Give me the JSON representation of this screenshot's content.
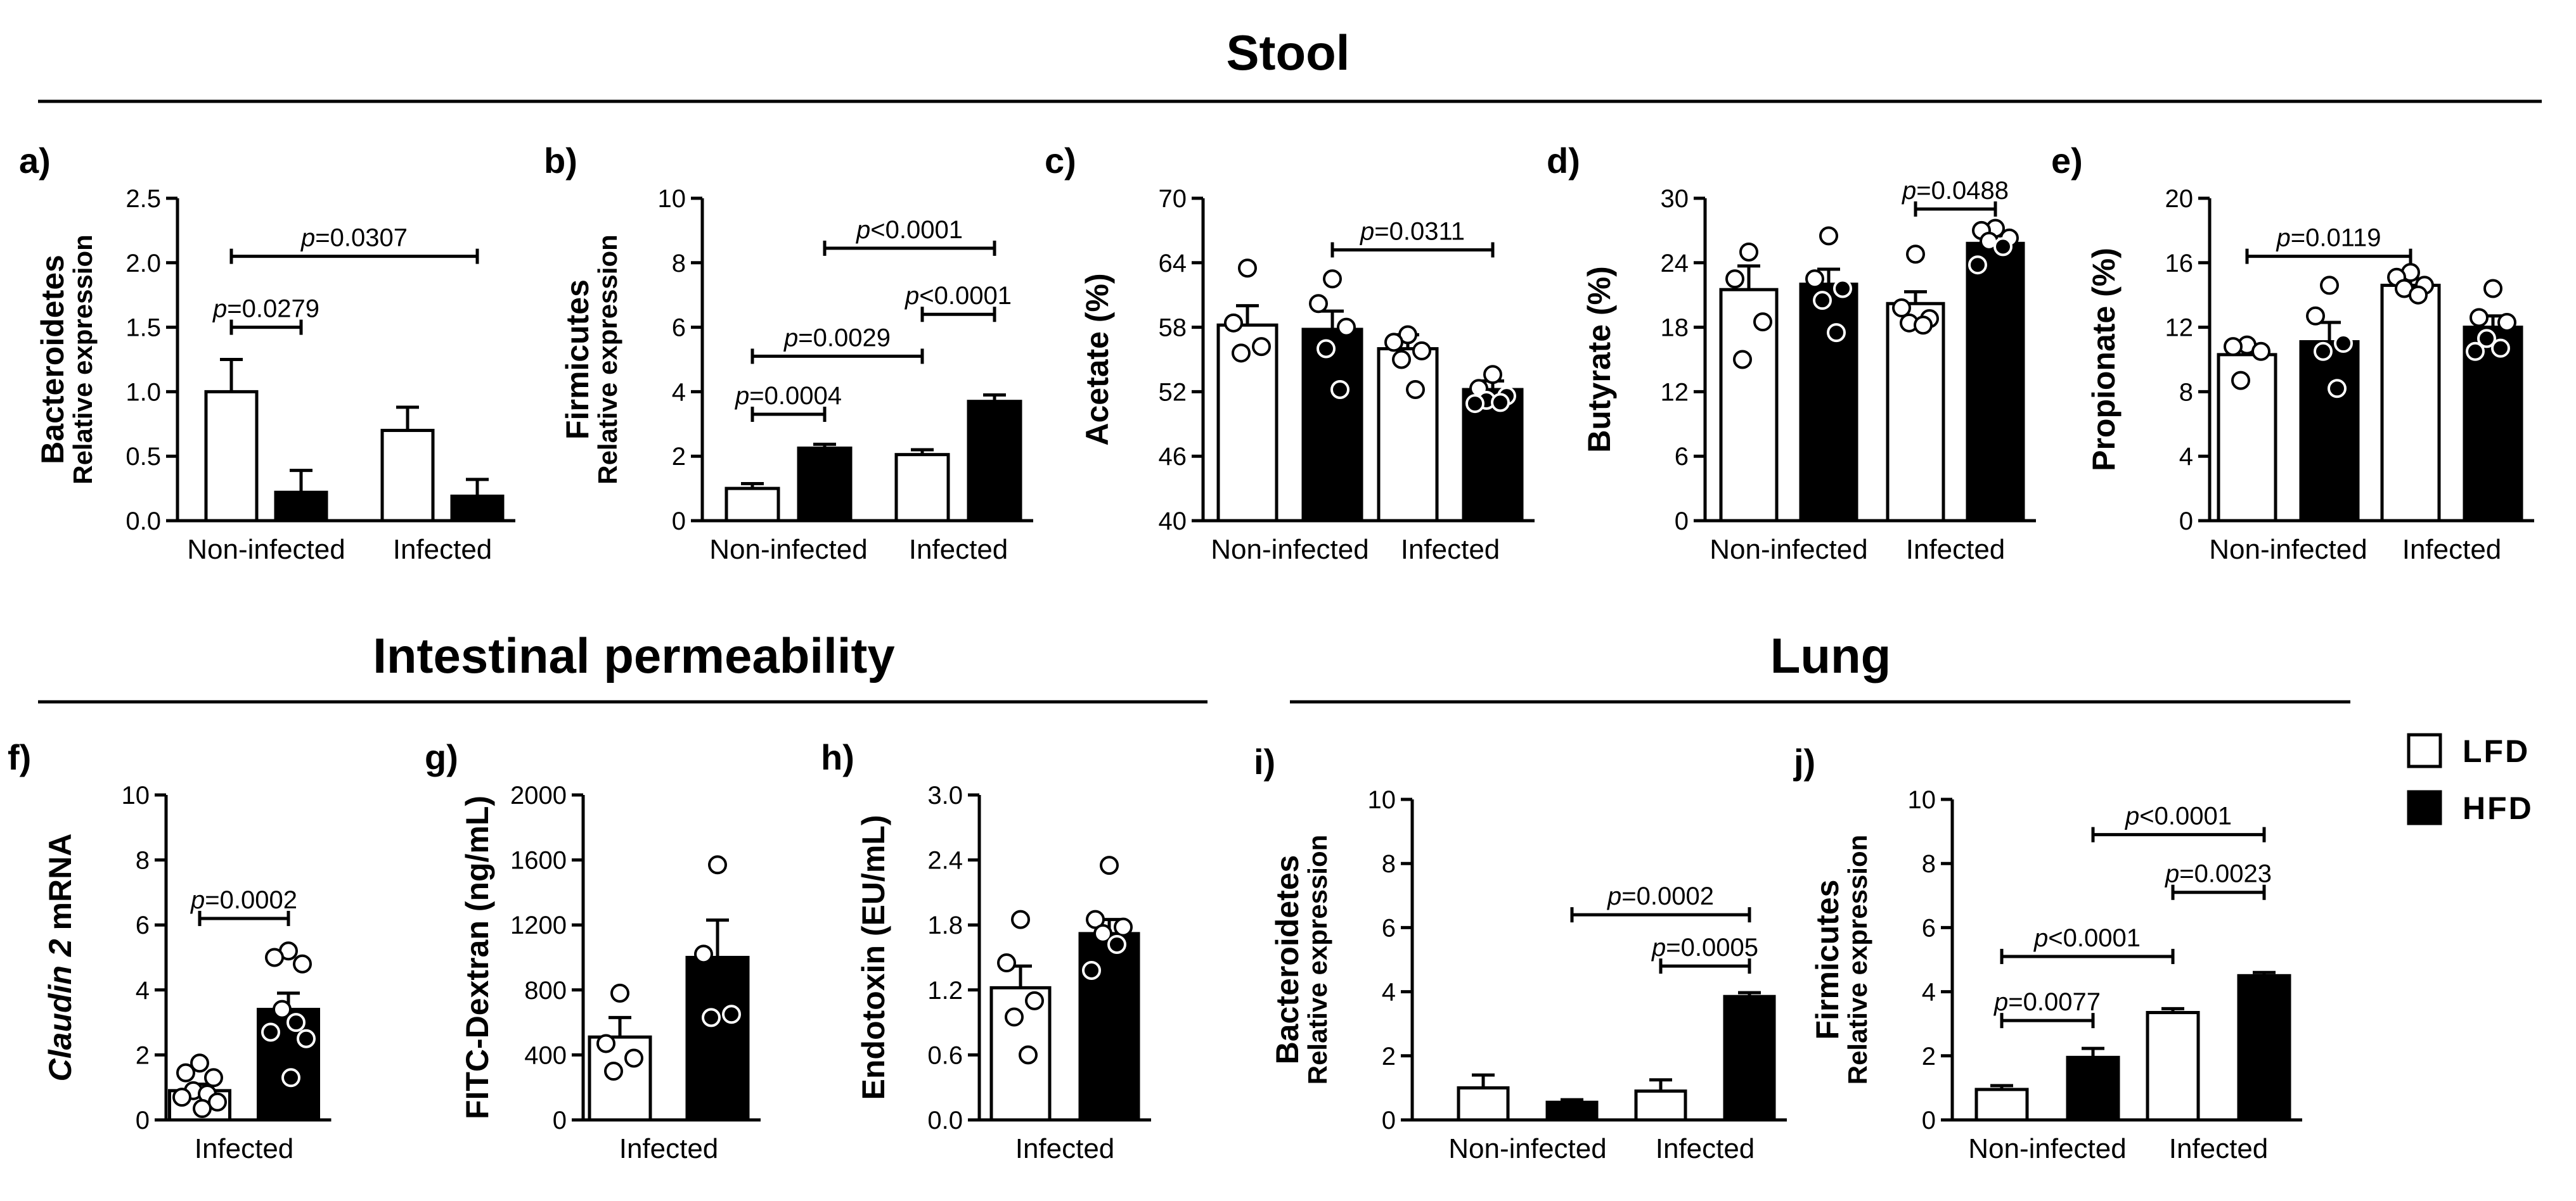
{
  "sections": {
    "stool": "Stool",
    "intestinal": "Intestinal permeability",
    "lung": "Lung"
  },
  "legend": [
    {
      "label": "LFD",
      "color": "#ffffff"
    },
    {
      "label": "HFD",
      "color": "#000000"
    }
  ],
  "chart_data": [
    {
      "id": "a",
      "label": "a)",
      "type": "bar",
      "ylabel": "Bacteroidetes",
      "ylabel2": "Relative expression",
      "ylim": [
        0,
        2.5
      ],
      "yticks": [
        "0.0",
        "0.5",
        "1.0",
        "1.5",
        "2.0",
        "2.5"
      ],
      "categories": [
        "Non-infected",
        "Infected"
      ],
      "series": [
        {
          "name": "LFD",
          "values": [
            1.0,
            0.7
          ],
          "errors": [
            0.25,
            0.18
          ],
          "points": [
            [],
            []
          ]
        },
        {
          "name": "HFD",
          "values": [
            0.22,
            0.19
          ],
          "errors": [
            0.17,
            0.13
          ],
          "points": [
            [],
            []
          ]
        }
      ],
      "comparisons": [
        {
          "p_pre": "p",
          "p_text": "=0.0279",
          "from": [
            0,
            0
          ],
          "to": [
            0,
            1
          ],
          "y": 1.5
        },
        {
          "p_pre": "p",
          "p_text": "=0.0307",
          "from": [
            0,
            0
          ],
          "to": [
            1,
            1
          ],
          "y": 2.05
        }
      ]
    },
    {
      "id": "b",
      "label": "b)",
      "type": "bar",
      "ylabel": "Firmicutes",
      "ylabel2": "Relative expression",
      "ylim": [
        0,
        10
      ],
      "yticks": [
        "0",
        "2",
        "4",
        "6",
        "8",
        "10"
      ],
      "categories": [
        "Non-infected",
        "Infected"
      ],
      "series": [
        {
          "name": "LFD",
          "values": [
            1.0,
            2.05
          ],
          "errors": [
            0.15,
            0.15
          ],
          "points": [
            [],
            []
          ]
        },
        {
          "name": "HFD",
          "values": [
            2.25,
            3.7
          ],
          "errors": [
            0.12,
            0.2
          ],
          "points": [
            [],
            []
          ]
        }
      ],
      "comparisons": [
        {
          "p_pre": "p",
          "p_text": "=0.0004",
          "from": [
            0,
            0
          ],
          "to": [
            0,
            1
          ],
          "y": 3.3
        },
        {
          "p_pre": "p",
          "p_text": "=0.0029",
          "from": [
            0,
            0
          ],
          "to": [
            1,
            0
          ],
          "y": 5.1
        },
        {
          "p_pre": "p",
          "p_text": "<0.0001",
          "from": [
            1,
            0
          ],
          "to": [
            1,
            1
          ],
          "y": 6.4
        },
        {
          "p_pre": "p",
          "p_text": "<0.0001",
          "from": [
            0,
            1
          ],
          "to": [
            1,
            1
          ],
          "y": 8.45
        }
      ]
    },
    {
      "id": "c",
      "label": "c)",
      "type": "bar",
      "ylabel": "Acetate (%)",
      "ylabel2": "",
      "ylim": [
        40,
        70
      ],
      "yticks": [
        "40",
        "46",
        "52",
        "58",
        "64",
        "70"
      ],
      "categories": [
        "Non-infected",
        "Infected"
      ],
      "series": [
        {
          "name": "LFD",
          "values": [
            58.2,
            56.0
          ],
          "errors": [
            1.8,
            1.3
          ],
          "points": [
            [
              63.5,
              58.4,
              56.2,
              55.6
            ],
            [
              57.3,
              56.6,
              55.8,
              55.0,
              52.2
            ]
          ]
        },
        {
          "name": "HFD",
          "values": [
            57.8,
            52.2
          ],
          "errors": [
            1.7,
            0.8
          ],
          "points": [
            [
              62.5,
              60.2,
              58.0,
              56.0,
              52.2
            ],
            [
              53.6,
              52.3,
              51.6,
              51.2,
              51.0,
              50.9
            ]
          ]
        }
      ],
      "comparisons": [
        {
          "p_pre": "p",
          "p_text": "=0.0311",
          "from": [
            0,
            1
          ],
          "to": [
            1,
            1
          ],
          "y": 65.2
        }
      ]
    },
    {
      "id": "d",
      "label": "d)",
      "type": "bar",
      "ylabel": "Butyrate (%)",
      "ylabel2": "",
      "ylim": [
        0,
        30
      ],
      "yticks": [
        "0",
        "6",
        "12",
        "18",
        "24",
        "30"
      ],
      "categories": [
        "Non-infected",
        "Infected"
      ],
      "series": [
        {
          "name": "LFD",
          "values": [
            21.5,
            20.2
          ],
          "errors": [
            2.2,
            1.1
          ],
          "points": [
            [
              25.0,
              22.5,
              18.5,
              15.0
            ],
            [
              24.8,
              19.8,
              18.8,
              18.4,
              18.2
            ]
          ]
        },
        {
          "name": "HFD",
          "values": [
            22.0,
            25.8
          ],
          "errors": [
            1.4,
            0.7
          ],
          "points": [
            [
              26.5,
              22.5,
              21.6,
              20.5,
              17.5
            ],
            [
              27.2,
              27.0,
              26.3,
              26.0,
              25.5,
              23.8
            ]
          ]
        }
      ],
      "comparisons": [
        {
          "p_pre": "p",
          "p_text": "=0.0488",
          "from": [
            1,
            0
          ],
          "to": [
            1,
            1
          ],
          "y": 29.0
        }
      ]
    },
    {
      "id": "e",
      "label": "e)",
      "type": "bar",
      "ylabel": "Propionate (%)",
      "ylabel2": "",
      "ylim": [
        0,
        20
      ],
      "yticks": [
        "0",
        "4",
        "8",
        "12",
        "16",
        "20"
      ],
      "categories": [
        "Non-infected",
        "Infected"
      ],
      "series": [
        {
          "name": "LFD",
          "values": [
            10.3,
            14.6
          ],
          "errors": [
            0.6,
            0.4
          ],
          "points": [
            [
              10.9,
              10.8,
              10.5,
              8.7
            ],
            [
              15.4,
              15.1,
              14.6,
              14.4,
              14.0
            ]
          ]
        },
        {
          "name": "HFD",
          "values": [
            11.1,
            12.0
          ],
          "errors": [
            1.2,
            0.7
          ],
          "points": [
            [
              14.6,
              12.7,
              11.0,
              10.5,
              8.2
            ],
            [
              14.4,
              12.6,
              12.3,
              11.3,
              10.7,
              10.5
            ]
          ]
        }
      ],
      "comparisons": [
        {
          "p_pre": "p",
          "p_text": "=0.0119",
          "from": [
            0,
            0
          ],
          "to": [
            1,
            0
          ],
          "y": 16.4
        }
      ]
    },
    {
      "id": "f",
      "label": "f)",
      "type": "bar",
      "ylabel": "mRNA",
      "ylabel_italic": "Claudin 2",
      "ylabel2": "",
      "ylim": [
        0,
        10
      ],
      "yticks": [
        "0",
        "2",
        "4",
        "6",
        "8",
        "10"
      ],
      "categories": [
        "Infected"
      ],
      "series": [
        {
          "name": "LFD",
          "values": [
            0.9
          ],
          "errors": [
            0.2
          ],
          "points": [
            [
              1.75,
              1.45,
              1.3,
              0.9,
              0.8,
              0.7,
              0.55,
              0.35
            ]
          ]
        },
        {
          "name": "HFD",
          "values": [
            3.4
          ],
          "errors": [
            0.5
          ],
          "points": [
            [
              5.2,
              5.0,
              4.8,
              3.4,
              3.0,
              2.7,
              2.5,
              1.3
            ]
          ]
        }
      ],
      "comparisons": [
        {
          "p_pre": "p",
          "p_text": "=0.0002",
          "from": [
            0,
            0
          ],
          "to": [
            0,
            1
          ],
          "y": 6.2
        }
      ]
    },
    {
      "id": "g",
      "label": "g)",
      "type": "bar",
      "ylabel": "FITC-Dextran (ng/mL)",
      "ylabel2": "",
      "ylim": [
        0,
        2000
      ],
      "yticks": [
        "0",
        "400",
        "800",
        "1200",
        "1600",
        "2000"
      ],
      "categories": [
        "Infected"
      ],
      "series": [
        {
          "name": "LFD",
          "values": [
            510
          ],
          "errors": [
            120
          ],
          "points": [
            [
              780,
              470,
              380,
              300
            ]
          ]
        },
        {
          "name": "HFD",
          "values": [
            1000
          ],
          "errors": [
            230
          ],
          "points": [
            [
              1570,
              1020,
              650,
              630
            ]
          ]
        }
      ],
      "comparisons": []
    },
    {
      "id": "h",
      "label": "h)",
      "type": "bar",
      "ylabel": "Endotoxin (EU/mL)",
      "ylabel2": "",
      "ylim": [
        0,
        3.0
      ],
      "yticks": [
        "0.0",
        "0.6",
        "1.2",
        "1.8",
        "2.4",
        "3.0"
      ],
      "categories": [
        "Infected"
      ],
      "series": [
        {
          "name": "LFD",
          "values": [
            1.22
          ],
          "errors": [
            0.2
          ],
          "points": [
            [
              1.85,
              1.45,
              1.1,
              0.95,
              0.6
            ]
          ]
        },
        {
          "name": "HFD",
          "values": [
            1.72
          ],
          "errors": [
            0.13
          ],
          "points": [
            [
              2.35,
              1.85,
              1.78,
              1.72,
              1.62,
              1.38
            ]
          ]
        }
      ],
      "comparisons": []
    },
    {
      "id": "i",
      "label": "i)",
      "type": "bar",
      "ylabel": "Bacteroidetes",
      "ylabel2": "Relative expression",
      "ylim": [
        0,
        10
      ],
      "yticks": [
        "0",
        "2",
        "4",
        "6",
        "8",
        "10"
      ],
      "categories": [
        "Non-infected",
        "Infected"
      ],
      "series": [
        {
          "name": "LFD",
          "values": [
            1.0,
            0.9
          ],
          "errors": [
            0.4,
            0.35
          ],
          "points": [
            [],
            []
          ]
        },
        {
          "name": "HFD",
          "values": [
            0.55,
            3.85
          ],
          "errors": [
            0.08,
            0.12
          ],
          "points": [
            [],
            []
          ]
        }
      ],
      "comparisons": [
        {
          "p_pre": "p",
          "p_text": "=0.0005",
          "from": [
            1,
            0
          ],
          "to": [
            1,
            1
          ],
          "y": 4.8
        },
        {
          "p_pre": "p",
          "p_text": "=0.0002",
          "from": [
            0,
            1
          ],
          "to": [
            1,
            1
          ],
          "y": 6.4
        }
      ]
    },
    {
      "id": "j",
      "label": "j)",
      "type": "bar",
      "ylabel": "Firmicutes",
      "ylabel2": "Relative expression",
      "ylim": [
        0,
        10
      ],
      "yticks": [
        "0",
        "2",
        "4",
        "6",
        "8",
        "10"
      ],
      "categories": [
        "Non-infected",
        "Infected"
      ],
      "series": [
        {
          "name": "LFD",
          "values": [
            0.95,
            3.35
          ],
          "errors": [
            0.12,
            0.12
          ],
          "points": [
            [],
            []
          ]
        },
        {
          "name": "HFD",
          "values": [
            1.95,
            4.5
          ],
          "errors": [
            0.28,
            0.1
          ],
          "points": [
            [],
            []
          ]
        }
      ],
      "comparisons": [
        {
          "p_pre": "p",
          "p_text": "=0.0077",
          "from": [
            0,
            0
          ],
          "to": [
            0,
            1
          ],
          "y": 3.1
        },
        {
          "p_pre": "p",
          "p_text": "<0.0001",
          "from": [
            0,
            0
          ],
          "to": [
            1,
            0
          ],
          "y": 5.1
        },
        {
          "p_pre": "p",
          "p_text": "=0.0023",
          "from": [
            1,
            0
          ],
          "to": [
            1,
            1
          ],
          "y": 7.1
        },
        {
          "p_pre": "p",
          "p_text": "<0.0001",
          "from": [
            0,
            1
          ],
          "to": [
            1,
            1
          ],
          "y": 8.9
        }
      ]
    }
  ]
}
